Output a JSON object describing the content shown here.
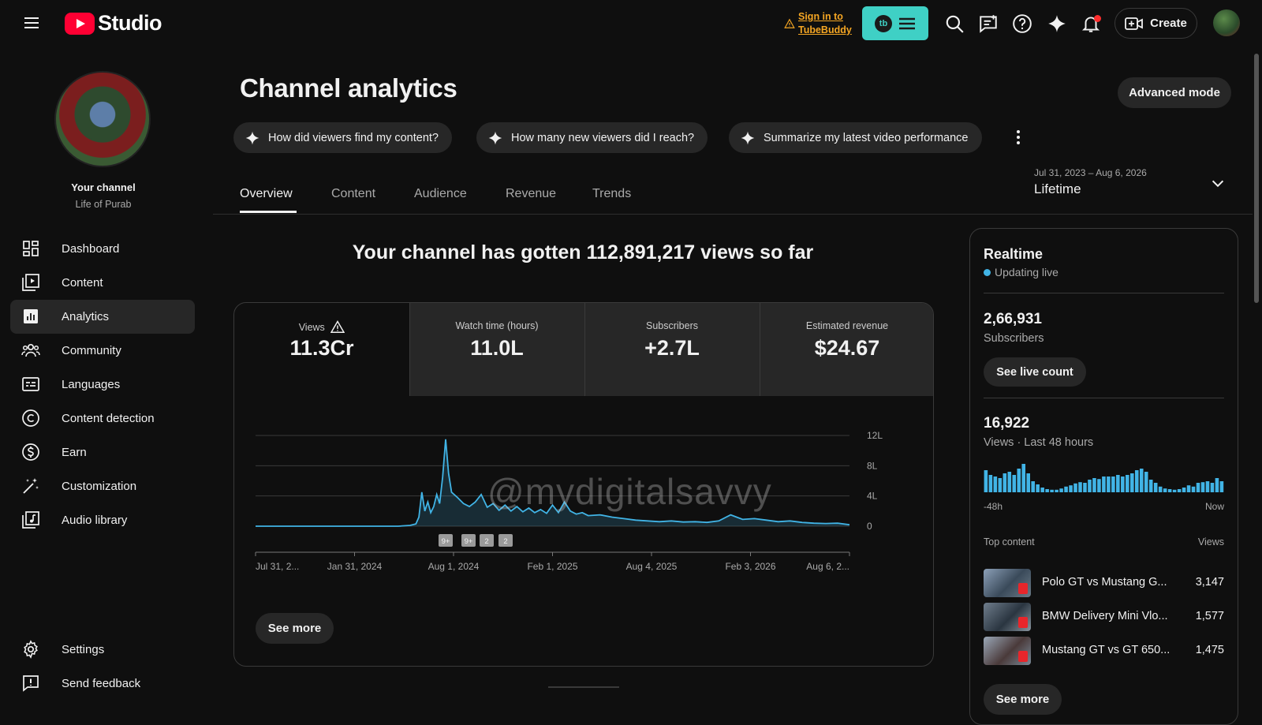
{
  "header": {
    "app_name": "Studio",
    "tubebuddy_line1": "Sign in to",
    "tubebuddy_line2": "TubeBuddy",
    "tubebuddy_badge": "tb",
    "create_label": "Create"
  },
  "sidebar": {
    "your_channel": "Your channel",
    "channel_name": "Life of Purab",
    "items": [
      {
        "label": "Dashboard",
        "icon": "dashboard-icon"
      },
      {
        "label": "Content",
        "icon": "content-icon"
      },
      {
        "label": "Analytics",
        "icon": "analytics-icon",
        "active": true
      },
      {
        "label": "Community",
        "icon": "community-icon"
      },
      {
        "label": "Languages",
        "icon": "languages-icon"
      },
      {
        "label": "Content detection",
        "icon": "copyright-icon"
      },
      {
        "label": "Earn",
        "icon": "dollar-icon"
      },
      {
        "label": "Customization",
        "icon": "magic-wand-icon"
      },
      {
        "label": "Audio library",
        "icon": "audio-library-icon"
      }
    ],
    "bottom": [
      {
        "label": "Settings",
        "icon": "gear-icon"
      },
      {
        "label": "Send feedback",
        "icon": "feedback-icon"
      }
    ]
  },
  "page": {
    "title": "Channel analytics",
    "advanced_mode": "Advanced mode",
    "chips": [
      "How did viewers find my content?",
      "How many new viewers did I reach?",
      "Summarize my latest video performance"
    ],
    "tabs": [
      "Overview",
      "Content",
      "Audience",
      "Revenue",
      "Trends"
    ],
    "active_tab": "Overview",
    "date_range": "Jul 31, 2023 – Aug 6, 2026",
    "date_preset": "Lifetime",
    "headline": "Your channel has gotten 112,891,217 views so far"
  },
  "metrics": [
    {
      "label": "Views",
      "value": "11.3Cr",
      "warning": true,
      "selected": true
    },
    {
      "label": "Watch time (hours)",
      "value": "11.0L",
      "selected": false
    },
    {
      "label": "Subscribers",
      "value": "+2.7L",
      "selected": false
    },
    {
      "label": "Estimated revenue",
      "value": "$24.67",
      "selected": false
    }
  ],
  "chart_data": {
    "type": "line",
    "x_tick_labels": [
      "Jul 31, 2...",
      "Jan 31, 2024",
      "Aug 1, 2024",
      "Feb 1, 2025",
      "Aug 4, 2025",
      "Feb 3, 2026",
      "Aug 6, 2..."
    ],
    "y_tick_labels": [
      "12L",
      "8L",
      "4L",
      "0"
    ],
    "y_ticks": [
      1200000,
      800000,
      400000,
      0
    ],
    "ylim": [
      0,
      1200000
    ],
    "annotation_markers": [
      "9+",
      "9+",
      "2",
      "2"
    ],
    "grid": true,
    "series": [
      {
        "x_fraction_description": "fraction of lifetime range from Jul 31, 2023 to Aug 6, 2026",
        "points": [
          [
            0.0,
            0
          ],
          [
            0.1,
            0
          ],
          [
            0.2,
            0
          ],
          [
            0.24,
            0
          ],
          [
            0.26,
            10000
          ],
          [
            0.27,
            30000
          ],
          [
            0.275,
            120000
          ],
          [
            0.28,
            450000
          ],
          [
            0.285,
            200000
          ],
          [
            0.29,
            320000
          ],
          [
            0.295,
            180000
          ],
          [
            0.3,
            260000
          ],
          [
            0.305,
            420000
          ],
          [
            0.31,
            300000
          ],
          [
            0.315,
            650000
          ],
          [
            0.32,
            1150000
          ],
          [
            0.325,
            700000
          ],
          [
            0.33,
            450000
          ],
          [
            0.34,
            380000
          ],
          [
            0.35,
            300000
          ],
          [
            0.36,
            260000
          ],
          [
            0.37,
            320000
          ],
          [
            0.38,
            420000
          ],
          [
            0.39,
            250000
          ],
          [
            0.4,
            300000
          ],
          [
            0.41,
            210000
          ],
          [
            0.42,
            280000
          ],
          [
            0.43,
            200000
          ],
          [
            0.44,
            260000
          ],
          [
            0.45,
            190000
          ],
          [
            0.46,
            240000
          ],
          [
            0.47,
            180000
          ],
          [
            0.48,
            220000
          ],
          [
            0.49,
            170000
          ],
          [
            0.5,
            280000
          ],
          [
            0.51,
            180000
          ],
          [
            0.52,
            320000
          ],
          [
            0.53,
            200000
          ],
          [
            0.54,
            160000
          ],
          [
            0.55,
            180000
          ],
          [
            0.56,
            140000
          ],
          [
            0.58,
            150000
          ],
          [
            0.6,
            120000
          ],
          [
            0.62,
            100000
          ],
          [
            0.64,
            80000
          ],
          [
            0.66,
            70000
          ],
          [
            0.68,
            60000
          ],
          [
            0.7,
            70000
          ],
          [
            0.72,
            55000
          ],
          [
            0.74,
            60000
          ],
          [
            0.76,
            50000
          ],
          [
            0.78,
            70000
          ],
          [
            0.8,
            150000
          ],
          [
            0.81,
            120000
          ],
          [
            0.82,
            90000
          ],
          [
            0.84,
            100000
          ],
          [
            0.86,
            80000
          ],
          [
            0.88,
            60000
          ],
          [
            0.9,
            70000
          ],
          [
            0.92,
            50000
          ],
          [
            0.94,
            40000
          ],
          [
            0.96,
            35000
          ],
          [
            0.98,
            40000
          ],
          [
            1.0,
            20000
          ]
        ]
      }
    ]
  },
  "see_more": "See more",
  "realtime": {
    "title": "Realtime",
    "status": "Updating live",
    "subscribers_value": "2,66,931",
    "subscribers_label": "Subscribers",
    "live_count_btn": "See live count",
    "views_value": "16,922",
    "views_label": "Views · Last 48 hours",
    "axis_start": "-48h",
    "axis_end": "Now",
    "bars": [
      0.7,
      0.55,
      0.5,
      0.45,
      0.6,
      0.65,
      0.55,
      0.75,
      0.9,
      0.6,
      0.35,
      0.25,
      0.15,
      0.1,
      0.08,
      0.08,
      0.12,
      0.18,
      0.22,
      0.28,
      0.32,
      0.3,
      0.4,
      0.45,
      0.42,
      0.5,
      0.5,
      0.5,
      0.55,
      0.5,
      0.55,
      0.6,
      0.7,
      0.75,
      0.65,
      0.4,
      0.3,
      0.18,
      0.12,
      0.1,
      0.08,
      0.1,
      0.15,
      0.22,
      0.18,
      0.3,
      0.32,
      0.35,
      0.3,
      0.45,
      0.35
    ],
    "top_content_label": "Top content",
    "views_col_label": "Views",
    "top_content": [
      {
        "title": "Polo GT vs Mustang G...",
        "views": "3,147"
      },
      {
        "title": "BMW Delivery Mini Vlo...",
        "views": "1,577"
      },
      {
        "title": "Mustang GT vs GT 650...",
        "views": "1,475"
      }
    ],
    "see_more": "See more"
  },
  "watermark": "@mydigitalsavvy",
  "colors": {
    "background": "#0f0f0f",
    "accent_line": "#41b4e6",
    "tubebuddy": "#3fd0c5",
    "warning": "#f5a623",
    "brand_red": "#ff0033"
  }
}
